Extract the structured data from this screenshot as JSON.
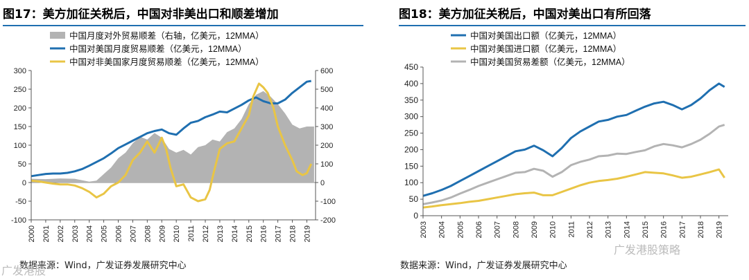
{
  "left_panel": {
    "title": "图17：美方加征关税后，中国对非美出口和顺差增加",
    "source": "数据来源：Wind，广发证券发展研究中心",
    "watermark": "广发港股",
    "chart_data": {
      "type": "line",
      "title": "图17：美方加征关税后，中国对非美出口和顺差增加",
      "x_labels": [
        "2000",
        "2001",
        "2002",
        "2003",
        "2004",
        "2005",
        "2006",
        "2007",
        "2008",
        "2009",
        "2010",
        "2011",
        "2012",
        "2013",
        "2014",
        "2015",
        "2016",
        "2017",
        "2018",
        "2019"
      ],
      "y_left": {
        "min": -100,
        "max": 300,
        "ticks": [
          -100,
          -50,
          0,
          50,
          100,
          150,
          200,
          250,
          300
        ]
      },
      "y_right": {
        "min": -200,
        "max": 600,
        "ticks": [
          -200,
          -100,
          0,
          100,
          200,
          300,
          400,
          500,
          600
        ]
      },
      "series": [
        {
          "name": "中国月度对外贸易顺差（右轴，亿美元，12MMA）",
          "axis": "right",
          "kind": "area",
          "color": "#b3b3b3",
          "x": [
            2000,
            2001,
            2002,
            2003,
            2004,
            2004.5,
            2005,
            2005.5,
            2006,
            2006.5,
            2007,
            2007.5,
            2008,
            2008.5,
            2009,
            2009.5,
            2010,
            2010.5,
            2011,
            2011.5,
            2012,
            2012.5,
            2013,
            2013.5,
            2014,
            2014.5,
            2015,
            2015.5,
            2016,
            2016.5,
            2017,
            2017.5,
            2018,
            2018.5,
            2019,
            2019.5
          ],
          "values": [
            20,
            18,
            22,
            20,
            5,
            10,
            45,
            80,
            130,
            160,
            210,
            245,
            230,
            265,
            240,
            180,
            160,
            175,
            150,
            190,
            200,
            230,
            220,
            270,
            290,
            340,
            420,
            470,
            490,
            460,
            420,
            370,
            310,
            290,
            300,
            300
          ]
        },
        {
          "name": "中国对美国月度贸易顺差（亿美元，12MMA）",
          "axis": "left",
          "kind": "line",
          "color": "#1f6fb0",
          "x": [
            2000,
            2000.5,
            2001,
            2001.5,
            2002,
            2002.5,
            2003,
            2003.5,
            2004,
            2004.5,
            2005,
            2005.5,
            2006,
            2006.5,
            2007,
            2007.5,
            2008,
            2008.5,
            2009,
            2009.5,
            2010,
            2010.5,
            2011,
            2011.5,
            2012,
            2012.5,
            2013,
            2013.5,
            2014,
            2014.5,
            2015,
            2015.5,
            2016,
            2016.5,
            2017,
            2017.5,
            2018,
            2018.5,
            2019,
            2019.3
          ],
          "values": [
            17,
            20,
            23,
            24,
            24,
            26,
            30,
            36,
            45,
            55,
            65,
            78,
            92,
            102,
            112,
            122,
            132,
            138,
            142,
            132,
            128,
            145,
            160,
            165,
            175,
            182,
            190,
            188,
            198,
            208,
            220,
            228,
            218,
            212,
            212,
            222,
            240,
            255,
            270,
            272
          ]
        },
        {
          "name": "中国对非美国家月度贸易顺差（亿美元，12MMA）",
          "axis": "left",
          "kind": "line",
          "color": "#e9c545",
          "x": [
            2000,
            2000.5,
            2001,
            2001.5,
            2002,
            2002.5,
            2003,
            2003.5,
            2004,
            2004.5,
            2005,
            2005.5,
            2006,
            2006.5,
            2007,
            2007.5,
            2008,
            2008.5,
            2009,
            2009.3,
            2009.6,
            2010,
            2010.5,
            2011,
            2011.5,
            2012,
            2012.3,
            2012.6,
            2013,
            2013.5,
            2014,
            2014.5,
            2015,
            2015.3,
            2015.7,
            2016,
            2016.3,
            2016.7,
            2017,
            2017.5,
            2018,
            2018.3,
            2018.7,
            2019,
            2019.3
          ],
          "values": [
            5,
            3,
            0,
            -3,
            -5,
            -5,
            -8,
            -15,
            -25,
            -40,
            -30,
            -10,
            0,
            20,
            60,
            80,
            110,
            80,
            120,
            90,
            40,
            -10,
            -5,
            -40,
            -50,
            -45,
            -20,
            30,
            90,
            105,
            110,
            145,
            180,
            230,
            265,
            255,
            240,
            200,
            150,
            100,
            60,
            30,
            20,
            25,
            50
          ]
        }
      ]
    }
  },
  "right_panel": {
    "title": "图18：美方加征关税后，中国对美出口有所回落",
    "source": "数据来源：Wind，广发证券发展研究中心",
    "watermark": "广发港股策略",
    "chart_data": {
      "type": "line",
      "title": "图18：美方加征关税后，中国对美出口有所回落",
      "x_labels": [
        "2003",
        "2004",
        "2005",
        "2006",
        "2007",
        "2008",
        "2009",
        "2010",
        "2011",
        "2012",
        "2013",
        "2014",
        "2015",
        "2016",
        "2017",
        "2018",
        "2019"
      ],
      "ylim": [
        0,
        450
      ],
      "yticks": [
        0,
        50,
        100,
        150,
        200,
        250,
        300,
        350,
        400,
        450
      ],
      "series": [
        {
          "name": "中国对美国出口额（亿美元，12MMA）",
          "color": "#1f6fb0",
          "x": [
            2003,
            2003.5,
            2004,
            2004.5,
            2005,
            2005.5,
            2006,
            2006.5,
            2007,
            2007.5,
            2008,
            2008.5,
            2009,
            2009.5,
            2010,
            2010.5,
            2011,
            2011.5,
            2012,
            2012.5,
            2013,
            2013.5,
            2014,
            2014.5,
            2015,
            2015.5,
            2016,
            2016.5,
            2017,
            2017.5,
            2018,
            2018.5,
            2019,
            2019.3
          ],
          "values": [
            60,
            68,
            78,
            90,
            105,
            120,
            135,
            150,
            165,
            180,
            195,
            200,
            212,
            198,
            180,
            205,
            235,
            255,
            270,
            285,
            290,
            300,
            305,
            318,
            330,
            340,
            345,
            335,
            322,
            335,
            355,
            380,
            400,
            390
          ]
        },
        {
          "name": "中国对美国进口额（亿美元，12MMA）",
          "color": "#e9c545",
          "x": [
            2003,
            2003.5,
            2004,
            2004.5,
            2005,
            2005.5,
            2006,
            2006.5,
            2007,
            2007.5,
            2008,
            2008.5,
            2009,
            2009.5,
            2010,
            2010.5,
            2011,
            2011.5,
            2012,
            2012.5,
            2013,
            2013.5,
            2014,
            2014.5,
            2015,
            2015.5,
            2016,
            2016.5,
            2017,
            2017.5,
            2018,
            2018.5,
            2019,
            2019.3
          ],
          "values": [
            25,
            28,
            32,
            35,
            38,
            42,
            45,
            50,
            55,
            60,
            65,
            68,
            70,
            62,
            62,
            72,
            82,
            92,
            100,
            105,
            108,
            112,
            118,
            125,
            132,
            130,
            128,
            122,
            115,
            118,
            125,
            132,
            140,
            115
          ]
        },
        {
          "name": "中国对美国贸易差额（亿美元，12MMA）",
          "color": "#b3b3b3",
          "x": [
            2003,
            2003.5,
            2004,
            2004.5,
            2005,
            2005.5,
            2006,
            2006.5,
            2007,
            2007.5,
            2008,
            2008.5,
            2009,
            2009.5,
            2010,
            2010.5,
            2011,
            2011.5,
            2012,
            2012.5,
            2013,
            2013.5,
            2014,
            2014.5,
            2015,
            2015.5,
            2016,
            2016.5,
            2017,
            2017.5,
            2018,
            2018.5,
            2019,
            2019.3
          ],
          "values": [
            35,
            40,
            46,
            55,
            67,
            78,
            90,
            100,
            110,
            120,
            130,
            132,
            142,
            136,
            118,
            132,
            153,
            163,
            170,
            180,
            182,
            188,
            187,
            193,
            198,
            210,
            217,
            213,
            207,
            217,
            230,
            248,
            270,
            275
          ]
        }
      ]
    }
  }
}
